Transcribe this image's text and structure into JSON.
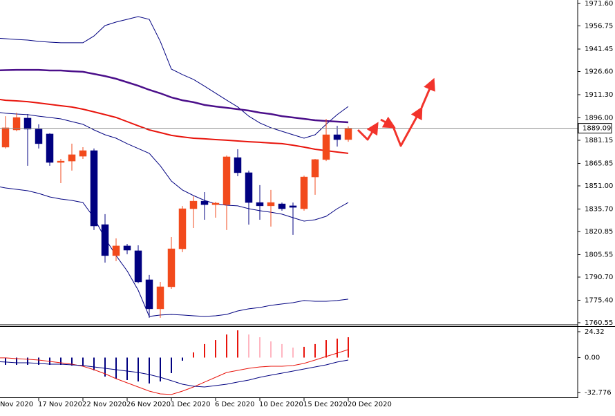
{
  "chart_data": {
    "type": "candlestick",
    "categories": [
      "Nov 2020",
      null,
      null,
      null,
      "17 Nov 2020",
      null,
      null,
      null,
      "22 Nov 2020",
      null,
      null,
      null,
      "26 Nov 2020",
      null,
      null,
      null,
      "1 Dec 2020",
      null,
      null,
      null,
      "6 Dec 2020",
      null,
      null,
      null,
      "10 Dec 2020",
      null,
      null,
      null,
      "15 Dec 2020",
      null,
      null,
      null,
      "20 Dec 2020"
    ],
    "open": [
      null,
      1876.6,
      1888.0,
      1895.8,
      1888.5,
      1885.3,
      1866.5,
      1867.4,
      1870.6,
      1874.3,
      1825.4,
      1804.9,
      1811.3,
      1808.1,
      1788.9,
      1769.7,
      1784.3,
      1809.4,
      1835.9,
      1840.9,
      1838.6,
      1838.6,
      1869.7,
      1859.7,
      1840.0,
      1837.8,
      1839.1,
      1837.8,
      1835.9,
      1856.9,
      1868.4,
      1884.8,
      1881.6
    ],
    "high": [
      null,
      1897.1,
      1899.4,
      1898.5,
      1891.7,
      1885.8,
      1868.8,
      1878.9,
      1876.6,
      1875.7,
      1832.3,
      1816.3,
      1812.6,
      1811.7,
      1792.1,
      1787.5,
      1817.2,
      1837.7,
      1844.1,
      1846.9,
      1840.5,
      1871.1,
      1875.2,
      1861.1,
      1851.5,
      1848.3,
      1840.0,
      1840.0,
      1857.8,
      1868.8,
      1895.3,
      1890.7,
      1890.3
    ],
    "low": [
      null,
      1875.7,
      1887.1,
      1864.3,
      1875.7,
      1864.3,
      1852.8,
      1861.1,
      1868.8,
      1821.8,
      1800.3,
      1801.2,
      1805.8,
      1786.6,
      1763.8,
      1763.8,
      1782.9,
      1807.2,
      1823.1,
      1828.6,
      1830.0,
      1821.8,
      1857.4,
      1825.4,
      1828.6,
      1824.1,
      1834.6,
      1818.6,
      1834.6,
      1845.1,
      1867.4,
      1877.0,
      1880.2
    ],
    "close": [
      null,
      1889.4,
      1896.2,
      1888.5,
      1878.9,
      1866.5,
      1867.4,
      1871.6,
      1874.3,
      1824.5,
      1804.9,
      1811.3,
      1808.5,
      1787.5,
      1769.7,
      1784.3,
      1809.4,
      1835.9,
      1840.9,
      1838.6,
      1839.6,
      1870.2,
      1859.7,
      1840.0,
      1837.8,
      1840.0,
      1835.9,
      1836.8,
      1856.9,
      1868.4,
      1884.8,
      1881.6,
      1889.09
    ],
    "up_color": "#f24a1c",
    "down_color": "#000080",
    "lines": [
      {
        "color": "#000080",
        "width": 1,
        "values": [
          1948.8,
          1948.3,
          1947.8,
          1947.4,
          1946.5,
          1946.0,
          1945.6,
          1945.6,
          1945.6,
          1950.1,
          1957.0,
          1959.3,
          1961.1,
          1962.9,
          1961.1,
          1946.5,
          1928.2,
          1924.6,
          1921.4,
          1916.9,
          1912.3,
          1907.7,
          1903.2,
          1897.1,
          1892.6,
          1889.4,
          1887.1,
          1884.8,
          1882.5,
          1884.8,
          1891.7,
          1898.1,
          1903.5
        ]
      },
      {
        "color": "#000080",
        "width": 1,
        "values": [
          1899.9,
          1899.0,
          1898.5,
          1898.1,
          1897.1,
          1896.2,
          1895.3,
          1893.5,
          1891.7,
          1888.0,
          1884.8,
          1882.5,
          1878.9,
          1875.7,
          1872.5,
          1864.3,
          1854.2,
          1848.3,
          1844.6,
          1841.4,
          1839.1,
          1838.2,
          1837.8,
          1835.9,
          1834.6,
          1833.6,
          1832.3,
          1830.0,
          1827.7,
          1828.6,
          1830.9,
          1835.9,
          1840.0
        ]
      },
      {
        "color": "#000080",
        "width": 1,
        "values": [
          1851.0,
          1849.6,
          1848.7,
          1847.8,
          1846.0,
          1843.7,
          1842.3,
          1841.4,
          1840.0,
          1830.0,
          1816.3,
          1804.9,
          1794.8,
          1782.0,
          1764.7,
          1765.6,
          1766.0,
          1765.6,
          1765.1,
          1764.7,
          1765.1,
          1766.0,
          1768.3,
          1769.7,
          1770.6,
          1772.0,
          1772.9,
          1773.8,
          1775.2,
          1774.7,
          1774.7,
          1775.2,
          1776.1
        ]
      },
      {
        "color": "#4b0f8a",
        "width": 2.5,
        "values": [
          1927.3,
          1927.5,
          1927.7,
          1927.7,
          1927.7,
          1927.3,
          1927.3,
          1926.8,
          1926.4,
          1925.0,
          1923.6,
          1921.8,
          1919.5,
          1917.2,
          1914.5,
          1912.2,
          1909.5,
          1907.6,
          1906.3,
          1904.5,
          1903.5,
          1902.6,
          1901.7,
          1900.8,
          1899.4,
          1898.5,
          1897.1,
          1896.2,
          1895.3,
          1894.4,
          1893.9,
          1893.5,
          1893.0
        ]
      },
      {
        "color": "#e8140c",
        "width": 2,
        "values": [
          1908.6,
          1907.6,
          1907.2,
          1906.7,
          1905.8,
          1904.9,
          1904.0,
          1903.1,
          1901.7,
          1899.9,
          1898.1,
          1896.2,
          1893.5,
          1890.7,
          1888.0,
          1886.2,
          1884.4,
          1883.4,
          1882.5,
          1882.1,
          1881.6,
          1881.2,
          1880.7,
          1880.2,
          1879.8,
          1879.3,
          1878.9,
          1877.9,
          1876.6,
          1875.2,
          1874.3,
          1873.4,
          1872.5
        ]
      }
    ],
    "ylim": [
      1759.17,
      1973.88
    ],
    "yticks": [
      {
        "value": 1971.6,
        "label": "1971.60"
      },
      {
        "value": 1956.75,
        "label": "1956.75"
      },
      {
        "value": 1941.45,
        "label": "1941.45"
      },
      {
        "value": 1926.6,
        "label": "1926.60"
      },
      {
        "value": 1911.3,
        "label": "1911.30"
      },
      {
        "value": 1896,
        "label": "1896.00"
      },
      {
        "value": 1881.15,
        "label": "1881.15"
      },
      {
        "value": 1865.85,
        "label": "1865.85"
      },
      {
        "value": 1851,
        "label": "1851.00"
      },
      {
        "value": 1835.7,
        "label": "1835.70"
      },
      {
        "value": 1820.85,
        "label": "1820.85"
      },
      {
        "value": 1805.55,
        "label": "1805.55"
      },
      {
        "value": 1790.7,
        "label": "1790.70"
      },
      {
        "value": 1775.4,
        "label": "1775.40"
      },
      {
        "value": 1760.55,
        "label": "1760.55"
      }
    ],
    "current_price": 1889.09,
    "indicator": {
      "type": "macd",
      "histogram": [
        -6.8,
        -6.8,
        -6.8,
        -6.8,
        -6.8,
        -6.8,
        -6.8,
        -7.5,
        -8.1,
        -12.0,
        -17.8,
        -19.8,
        -21.1,
        -22.4,
        -24.3,
        -22.4,
        -14.6,
        -2.9,
        4.9,
        12.7,
        16.5,
        21.7,
        25.6,
        21.7,
        19.1,
        15.2,
        12.7,
        9.4,
        10.1,
        12.7,
        16.5,
        17.8,
        19.1
      ],
      "histogram_colors": [
        "#000080",
        "#000080",
        "#000080",
        "#000080",
        "#000080",
        "#000080",
        "#000080",
        "#000080",
        "#000080",
        "#000080",
        "#000080",
        "#000080",
        "#000080",
        "#000080",
        "#000080",
        "#000080",
        "#000080",
        "#000080",
        "#e8140c",
        "#e8140c",
        "#e8140c",
        "#e8140c",
        "#e8140c",
        "#ffb6c1",
        "#ffb6c1",
        "#ffb6c1",
        "#ffb6c1",
        "#ffb6c1",
        "#e8140c",
        "#e8140c",
        "#e8140c",
        "#e8140c",
        "#e8140c"
      ],
      "lines": [
        {
          "color": "#e8140c",
          "width": 1,
          "values": [
            -0.3,
            -0.3,
            -1.0,
            -1.6,
            -2.3,
            -3.6,
            -4.9,
            -6.2,
            -8.1,
            -11.4,
            -15.2,
            -19.8,
            -23.7,
            -27.6,
            -31.5,
            -34.1,
            -34.7,
            -31.5,
            -27.6,
            -23.0,
            -18.5,
            -14.0,
            -12.0,
            -10.1,
            -8.8,
            -8.1,
            -8.1,
            -7.5,
            -5.5,
            -2.3,
            1.0,
            4.2,
            7.5
          ]
        },
        {
          "color": "#000080",
          "width": 1,
          "values": [
            -3.6,
            -4.2,
            -4.9,
            -4.9,
            -5.5,
            -6.2,
            -6.2,
            -6.8,
            -7.5,
            -8.8,
            -10.1,
            -11.4,
            -12.7,
            -14.0,
            -15.9,
            -18.5,
            -21.7,
            -25.0,
            -26.9,
            -27.6,
            -26.3,
            -25.0,
            -23.0,
            -21.1,
            -18.5,
            -16.5,
            -14.6,
            -12.7,
            -10.7,
            -8.8,
            -6.8,
            -4.2,
            -2.3
          ]
        }
      ],
      "ylim": [
        -37.33,
        28.86
      ],
      "yticks": [
        24.32,
        {
          "value": 0,
          "label": "0.00"
        },
        -32.776
      ]
    }
  }
}
